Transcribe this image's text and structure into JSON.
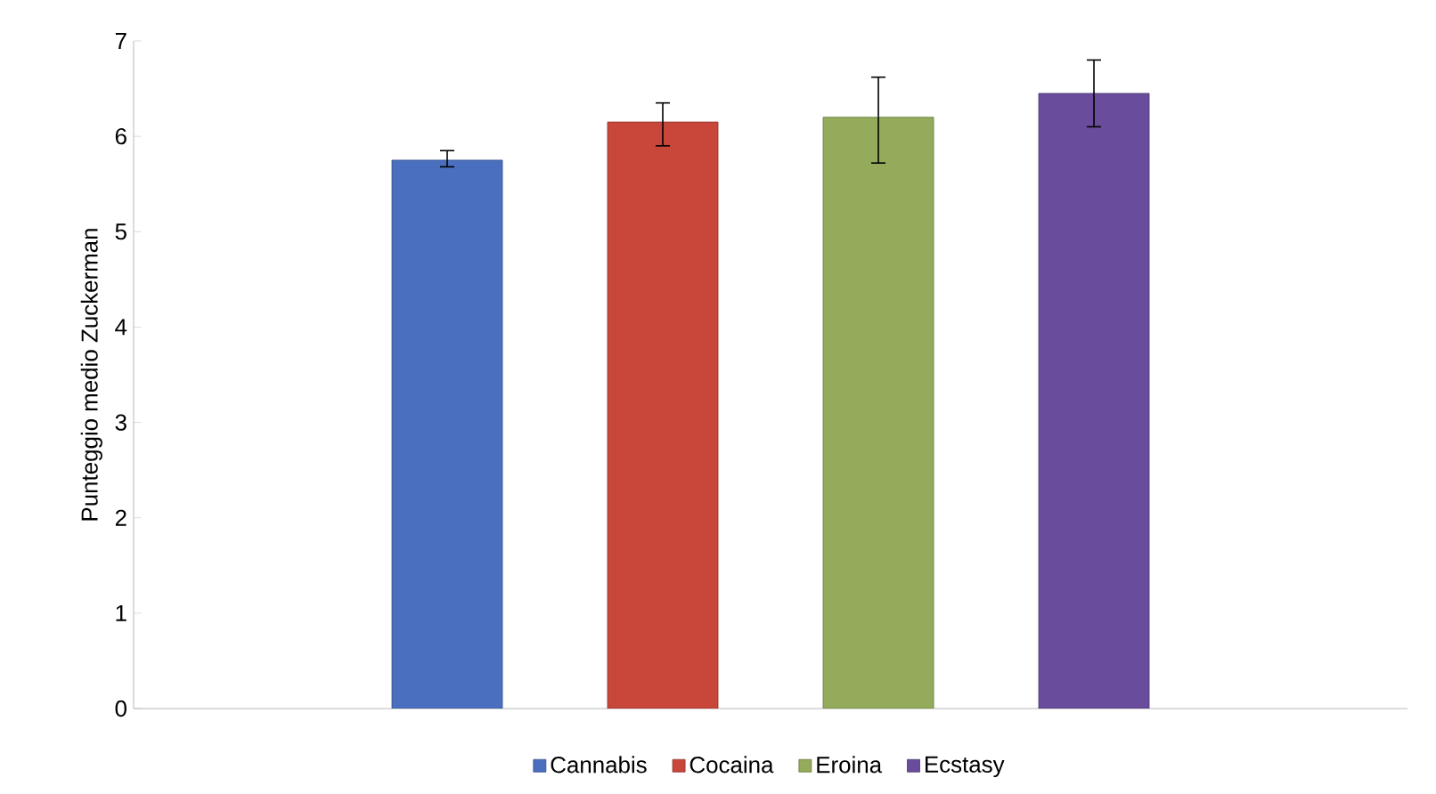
{
  "chart_data": {
    "type": "bar",
    "ylabel": "Punteggio medio Zuckerman",
    "categories": [
      null
    ],
    "series": [
      {
        "name": "Cannabis",
        "color": "#4a6fbf",
        "values": [
          5.75
        ],
        "errors": [
          [
            5.68,
            5.85
          ]
        ]
      },
      {
        "name": "Cocaina",
        "color": "#c8463a",
        "values": [
          6.15
        ],
        "errors": [
          [
            5.9,
            6.35
          ]
        ]
      },
      {
        "name": "Eroina",
        "color": "#93ab5a",
        "values": [
          6.2
        ],
        "errors": [
          [
            5.72,
            6.62
          ]
        ]
      },
      {
        "name": "Ecstasy",
        "color": "#6a4c9c",
        "values": [
          6.45
        ],
        "errors": [
          [
            6.1,
            6.8
          ]
        ]
      }
    ],
    "ylim": [
      0,
      7
    ],
    "yticks": [
      0,
      1,
      2,
      3,
      4,
      5,
      6,
      7
    ],
    "legend": "bottom"
  }
}
